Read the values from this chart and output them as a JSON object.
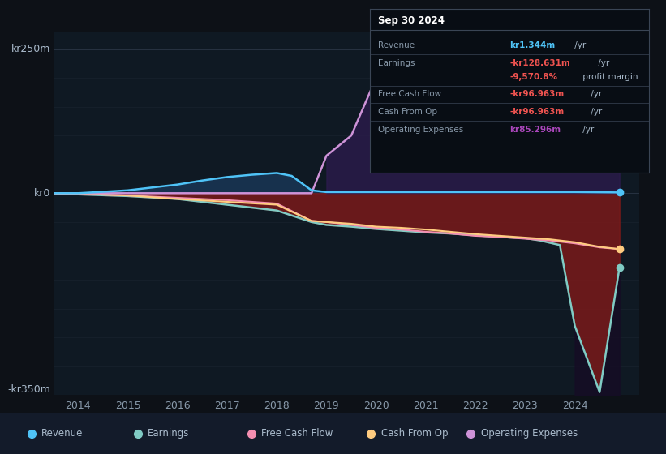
{
  "background_color": "#0d1117",
  "plot_bg": "#0f1923",
  "grid_color": "#2a3545",
  "ylim": [
    -350,
    280
  ],
  "xlim": [
    2013.5,
    2025.3
  ],
  "xticks": [
    2014,
    2015,
    2016,
    2017,
    2018,
    2019,
    2020,
    2021,
    2022,
    2023,
    2024
  ],
  "legend": [
    {
      "label": "Revenue",
      "color": "#4fc3f7"
    },
    {
      "label": "Earnings",
      "color": "#80cbc4"
    },
    {
      "label": "Free Cash Flow",
      "color": "#f48fb1"
    },
    {
      "label": "Cash From Op",
      "color": "#ffcc80"
    },
    {
      "label": "Operating Expenses",
      "color": "#ce93d8"
    }
  ],
  "series": {
    "Revenue": {
      "color": "#4fc3f7",
      "x": [
        2013.5,
        2014,
        2015,
        2016,
        2016.5,
        2017,
        2017.5,
        2018,
        2018.3,
        2018.7,
        2019,
        2020,
        2021,
        2022,
        2023,
        2024,
        2024.9
      ],
      "y": [
        0,
        0,
        5,
        15,
        22,
        28,
        32,
        35,
        30,
        5,
        2,
        2,
        2,
        2,
        2,
        2,
        1.344
      ]
    },
    "Earnings": {
      "color": "#80cbc4",
      "x": [
        2013.5,
        2014,
        2015,
        2016,
        2017,
        2018,
        2018.7,
        2019,
        2019.5,
        2020,
        2020.5,
        2021,
        2021.5,
        2022,
        2022.5,
        2023,
        2023.3,
        2023.7,
        2024,
        2024.5,
        2024.9
      ],
      "y": [
        -2,
        -2,
        -5,
        -10,
        -20,
        -30,
        -50,
        -55,
        -58,
        -62,
        -65,
        -68,
        -70,
        -73,
        -76,
        -78,
        -82,
        -90,
        -230,
        -345,
        -128.631
      ]
    },
    "Free_Cash_Flow": {
      "color": "#f48fb1",
      "x": [
        2013.5,
        2014,
        2015,
        2016,
        2017,
        2018,
        2018.7,
        2019,
        2019.5,
        2020,
        2020.5,
        2021,
        2021.5,
        2022,
        2022.5,
        2023,
        2023.5,
        2024,
        2024.5,
        2024.9
      ],
      "y": [
        -1,
        -1,
        -4,
        -8,
        -12,
        -18,
        -48,
        -50,
        -55,
        -60,
        -63,
        -67,
        -70,
        -74,
        -76,
        -79,
        -82,
        -87,
        -94,
        -96.963
      ]
    },
    "Cash_From_Op": {
      "color": "#ffcc80",
      "x": [
        2013.5,
        2014,
        2015,
        2016,
        2017,
        2018,
        2018.7,
        2019,
        2019.5,
        2020,
        2020.5,
        2021,
        2021.5,
        2022,
        2022.5,
        2023,
        2023.5,
        2024,
        2024.5,
        2024.9
      ],
      "y": [
        -1,
        -1,
        -4,
        -10,
        -15,
        -20,
        -48,
        -50,
        -53,
        -58,
        -60,
        -63,
        -67,
        -71,
        -74,
        -77,
        -80,
        -85,
        -93,
        -96.963
      ]
    },
    "Operating_Expenses": {
      "color": "#ce93d8",
      "x": [
        2013.5,
        2014,
        2015,
        2016,
        2017,
        2018,
        2018.7,
        2019,
        2019.5,
        2020,
        2020.3,
        2020.7,
        2021,
        2021.5,
        2022,
        2022.5,
        2023,
        2023.5,
        2024,
        2024.5,
        2024.9
      ],
      "y": [
        0,
        0,
        0,
        0,
        0,
        0,
        0,
        65,
        100,
        200,
        235,
        210,
        185,
        188,
        172,
        168,
        163,
        158,
        105,
        92,
        85.296
      ]
    }
  },
  "tooltip": {
    "title": "Sep 30 2024",
    "rows": [
      {
        "label": "Revenue",
        "value": "kr1.344m",
        "unit": " /yr",
        "color": "#4fc3f7",
        "extra": null
      },
      {
        "label": "Earnings",
        "value": "-kr128.631m",
        "unit": " /yr",
        "color": "#ef5350",
        "extra": null
      },
      {
        "label": "",
        "value": "-9,570.8%",
        "unit": " profit margin",
        "color": "#ef5350",
        "extra": null
      },
      {
        "label": "Free Cash Flow",
        "value": "-kr96.963m",
        "unit": " /yr",
        "color": "#ef5350",
        "extra": null
      },
      {
        "label": "Cash From Op",
        "value": "-kr96.963m",
        "unit": " /yr",
        "color": "#ef5350",
        "extra": null
      },
      {
        "label": "Operating Expenses",
        "value": "kr85.296m",
        "unit": " /yr",
        "color": "#ab47bc",
        "extra": null
      }
    ]
  }
}
